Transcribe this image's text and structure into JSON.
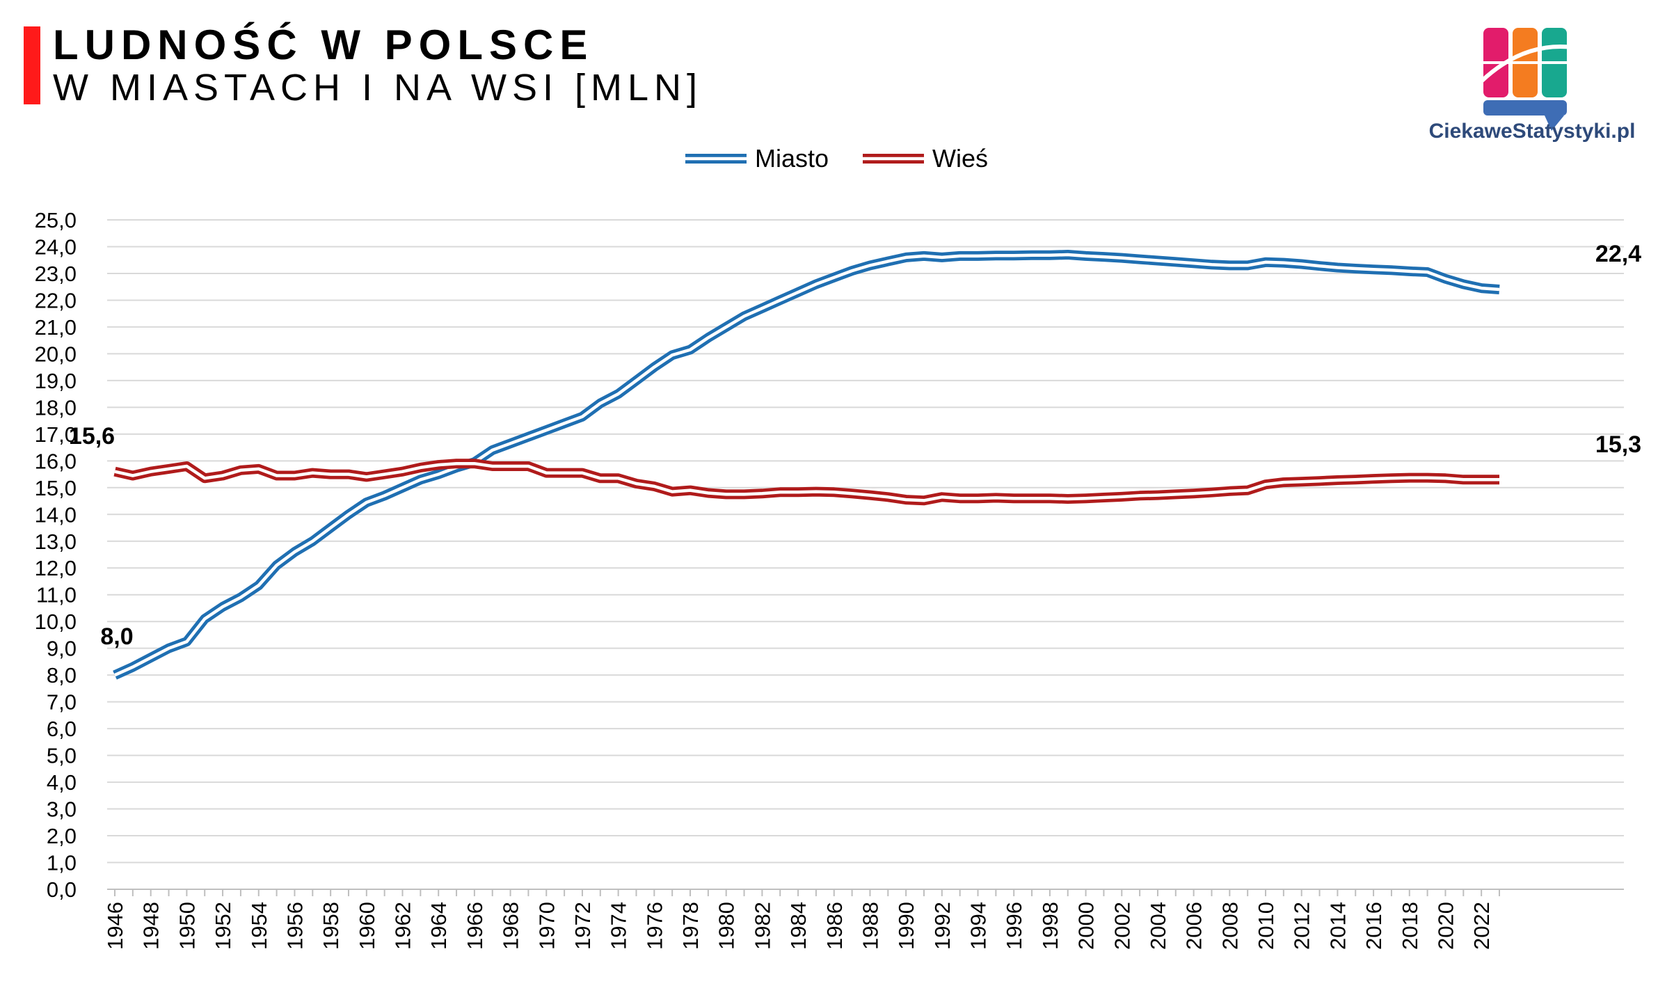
{
  "header": {
    "title": "LUDNOŚĆ W POLSCE",
    "subtitle": "W MIASTACH I NA WSI [MLN]"
  },
  "logo": {
    "text": "CiekaweStatystyki.pl",
    "colors": [
      "#e21c6b",
      "#f47c20",
      "#18a88f",
      "#3e6db5"
    ]
  },
  "chart_data": {
    "type": "line",
    "title": "LUDNOŚĆ W POLSCE",
    "subtitle": "W MIASTACH I NA WSI [MLN]",
    "xlabel": "",
    "ylabel": "",
    "ylim": [
      0,
      25
    ],
    "y_ticks": [
      "0,0",
      "1,0",
      "2,0",
      "3,0",
      "4,0",
      "5,0",
      "6,0",
      "7,0",
      "8,0",
      "9,0",
      "10,0",
      "11,0",
      "12,0",
      "13,0",
      "14,0",
      "15,0",
      "16,0",
      "17,0",
      "18,0",
      "19,0",
      "20,0",
      "21,0",
      "22,0",
      "23,0",
      "24,0",
      "25,0"
    ],
    "x_tick_labels": [
      "1946",
      "1948",
      "1950",
      "1952",
      "1954",
      "1956",
      "1958",
      "1960",
      "1962",
      "1964",
      "1966",
      "1968",
      "1970",
      "1972",
      "1974",
      "1976",
      "1978",
      "1980",
      "1982",
      "1984",
      "1986",
      "1988",
      "1990",
      "1992",
      "1994",
      "1996",
      "1998",
      "2000",
      "2002",
      "2004",
      "2006",
      "2008",
      "2010",
      "2012",
      "2014",
      "2016",
      "2018",
      "2020",
      "2022"
    ],
    "grid": true,
    "legend_position": "top",
    "x": [
      1946,
      1947,
      1948,
      1949,
      1950,
      1951,
      1952,
      1953,
      1954,
      1955,
      1956,
      1957,
      1958,
      1959,
      1960,
      1961,
      1962,
      1963,
      1964,
      1965,
      1966,
      1967,
      1968,
      1969,
      1970,
      1971,
      1972,
      1973,
      1974,
      1975,
      1976,
      1977,
      1978,
      1979,
      1980,
      1981,
      1982,
      1983,
      1984,
      1985,
      1986,
      1987,
      1988,
      1989,
      1990,
      1991,
      1992,
      1993,
      1994,
      1995,
      1996,
      1997,
      1998,
      1999,
      2000,
      2001,
      2002,
      2003,
      2004,
      2005,
      2006,
      2007,
      2008,
      2009,
      2010,
      2011,
      2012,
      2013,
      2014,
      2015,
      2016,
      2017,
      2018,
      2019,
      2020,
      2021,
      2022,
      2023
    ],
    "series": [
      {
        "name": "Miasto",
        "color": "#1f6fb2",
        "values": [
          8.0,
          8.3,
          8.65,
          9.0,
          9.25,
          10.1,
          10.55,
          10.9,
          11.35,
          12.1,
          12.6,
          13.0,
          13.5,
          14.0,
          14.45,
          14.7,
          15.0,
          15.3,
          15.5,
          15.75,
          15.95,
          16.4,
          16.65,
          16.9,
          17.15,
          17.4,
          17.65,
          18.15,
          18.5,
          19.0,
          19.5,
          19.95,
          20.15,
          20.6,
          21.0,
          21.4,
          21.7,
          22.0,
          22.3,
          22.6,
          22.85,
          23.1,
          23.3,
          23.45,
          23.6,
          23.65,
          23.6,
          23.65,
          23.65,
          23.67,
          23.67,
          23.68,
          23.68,
          23.7,
          23.65,
          23.62,
          23.58,
          23.53,
          23.48,
          23.43,
          23.38,
          23.33,
          23.3,
          23.3,
          23.42,
          23.4,
          23.35,
          23.28,
          23.22,
          23.18,
          23.15,
          23.12,
          23.08,
          23.05,
          22.8,
          22.6,
          22.45,
          22.4
        ]
      },
      {
        "name": "Wieś",
        "color": "#b01b1b",
        "values": [
          15.6,
          15.45,
          15.6,
          15.7,
          15.8,
          15.35,
          15.45,
          15.65,
          15.7,
          15.45,
          15.45,
          15.55,
          15.5,
          15.5,
          15.4,
          15.5,
          15.6,
          15.75,
          15.85,
          15.9,
          15.9,
          15.8,
          15.8,
          15.8,
          15.55,
          15.55,
          15.55,
          15.35,
          15.35,
          15.15,
          15.05,
          14.85,
          14.9,
          14.8,
          14.75,
          14.75,
          14.78,
          14.83,
          14.83,
          14.85,
          14.83,
          14.78,
          14.72,
          14.65,
          14.55,
          14.52,
          14.65,
          14.6,
          14.6,
          14.62,
          14.6,
          14.6,
          14.6,
          14.58,
          14.6,
          14.63,
          14.66,
          14.7,
          14.72,
          14.75,
          14.78,
          14.82,
          14.87,
          14.9,
          15.12,
          15.2,
          15.22,
          15.25,
          15.28,
          15.3,
          15.33,
          15.35,
          15.37,
          15.37,
          15.35,
          15.3,
          15.3,
          15.3
        ]
      }
    ],
    "annotations": [
      "15,6",
      "8,0",
      "22,4",
      "15,3"
    ]
  }
}
